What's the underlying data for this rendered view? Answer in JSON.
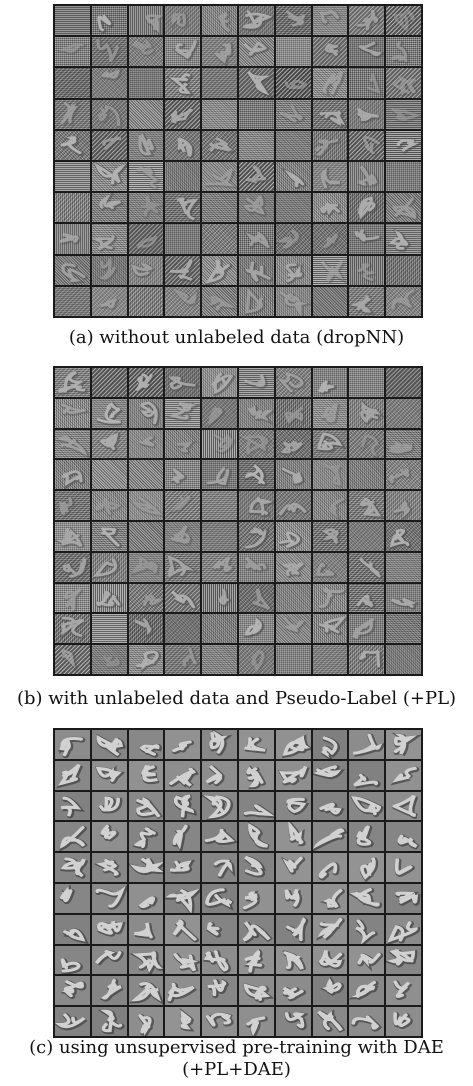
{
  "figure": {
    "panels": [
      {
        "caption": "(a) without unlabeled data (dropNN)",
        "grid_rows": 10,
        "grid_cols": 10,
        "style": "noisy-filters"
      },
      {
        "caption": "(b) with unlabeled data and Pseudo-Label (+PL)",
        "grid_rows": 10,
        "grid_cols": 10,
        "style": "noisy-filters"
      },
      {
        "caption_line1": "(c) using unsupervised pre-training with DAE",
        "caption_line2": "(+PL+DAE)",
        "grid_rows": 10,
        "grid_cols": 10,
        "style": "smooth-digit-filters"
      }
    ]
  }
}
